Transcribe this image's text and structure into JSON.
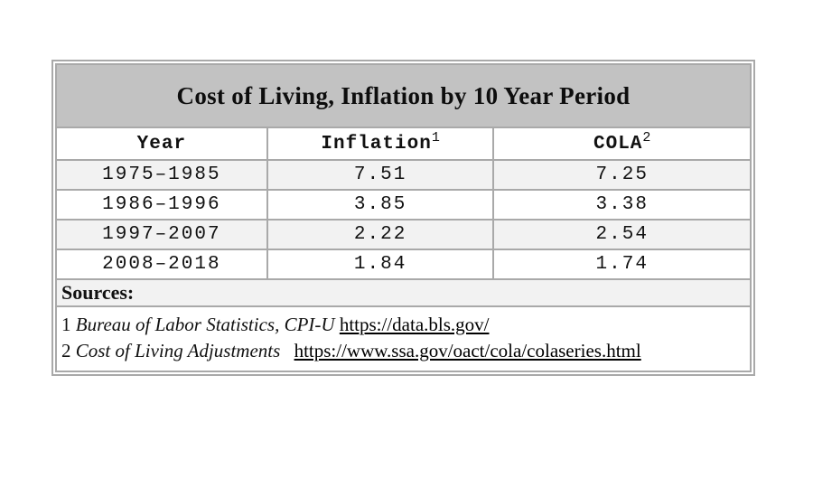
{
  "title": "Cost of Living, Inflation by 10 Year Period",
  "header": {
    "columns": [
      {
        "label": "Year",
        "sup": ""
      },
      {
        "label": "Inflation",
        "sup": "1"
      },
      {
        "label": "COLA",
        "sup": "2"
      }
    ]
  },
  "sources": {
    "heading": "Sources:",
    "footnotes": [
      {
        "marker": "1",
        "label": "Bureau of Labor Statistics, CPI-U",
        "url": "https://data.bls.gov/"
      },
      {
        "marker": "2",
        "label": "Cost of Living Adjustments",
        "url": "https://www.ssa.gov/oact/cola/colaseries.html"
      }
    ]
  },
  "colors": {
    "title_background": "#c2c2c2",
    "border": "#a9a9a9",
    "row_stripe": "#f2f2f2",
    "row_plain": "#ffffff",
    "text": "#111111",
    "link": "#000000"
  },
  "chart_data": {
    "type": "table",
    "title": "Cost of Living, Inflation by 10 Year Period",
    "columns": [
      "Year",
      "Inflation",
      "COLA"
    ],
    "rows": [
      [
        "1975–1985",
        "7.51",
        "7.25"
      ],
      [
        "1986–1996",
        "3.85",
        "3.38"
      ],
      [
        "1997–2007",
        "2.22",
        "2.54"
      ],
      [
        "2008–2018",
        "1.84",
        "1.74"
      ]
    ]
  }
}
